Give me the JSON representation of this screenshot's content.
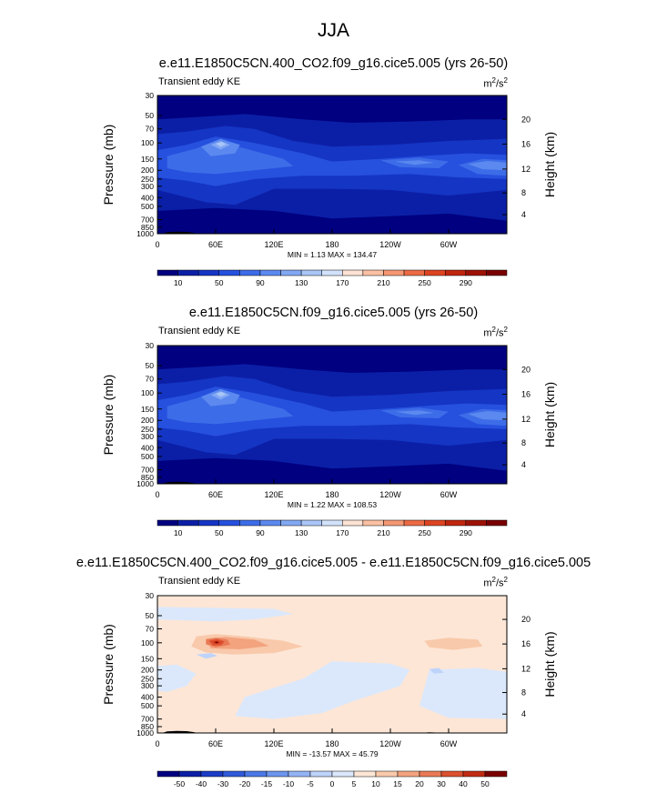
{
  "page_title": "JJA",
  "chart_data": [
    {
      "type": "heatmap",
      "title": "e.e11.E1850C5CN.400_CO2.f09_g16.cice5.005 (yrs 26-50)",
      "field_label": "Transient eddy KE",
      "units": "m",
      "units_exp": "2",
      "units_mid": "/s",
      "units_exp2": "2",
      "ylabel": "Pressure (mb)",
      "ylabel_right": "Height (km)",
      "xticks": [
        "0",
        "60E",
        "120E",
        "180",
        "120W",
        "60W"
      ],
      "yticks": [
        "30",
        "50",
        "70",
        "100",
        "150",
        "200",
        "250",
        "300",
        "400",
        "500",
        "700",
        "850",
        "1000"
      ],
      "yticks_right": [
        "20",
        "16",
        "12",
        "8",
        "4"
      ],
      "stats": "MIN =   1.13  MAX = 134.47",
      "min": 1.13,
      "max": 134.47,
      "colorbar_labels": [
        "10",
        "50",
        "90",
        "130",
        "170",
        "210",
        "250",
        "290"
      ]
    },
    {
      "type": "heatmap",
      "title": "e.e11.E1850C5CN.f09_g16.cice5.005 (yrs 26-50)",
      "field_label": "Transient eddy KE",
      "units": "m",
      "units_exp": "2",
      "units_mid": "/s",
      "units_exp2": "2",
      "ylabel": "Pressure (mb)",
      "ylabel_right": "Height (km)",
      "xticks": [
        "0",
        "60E",
        "120E",
        "180",
        "120W",
        "60W"
      ],
      "yticks": [
        "30",
        "50",
        "70",
        "100",
        "150",
        "200",
        "250",
        "300",
        "400",
        "500",
        "700",
        "850",
        "1000"
      ],
      "yticks_right": [
        "20",
        "16",
        "12",
        "8",
        "4"
      ],
      "stats": "MIN =   1.22  MAX = 108.53",
      "min": 1.22,
      "max": 108.53,
      "colorbar_labels": [
        "10",
        "50",
        "90",
        "130",
        "170",
        "210",
        "250",
        "290"
      ]
    },
    {
      "type": "heatmap",
      "title": "e.e11.E1850C5CN.400_CO2.f09_g16.cice5.005 - e.e11.E1850C5CN.f09_g16.cice5.005",
      "field_label": "Transient eddy KE",
      "units": "m",
      "units_exp": "2",
      "units_mid": "/s",
      "units_exp2": "2",
      "ylabel": "Pressure (mb)",
      "ylabel_right": "Height (km)",
      "xticks": [
        "0",
        "60E",
        "120E",
        "180",
        "120W",
        "60W"
      ],
      "yticks": [
        "30",
        "50",
        "70",
        "100",
        "150",
        "200",
        "250",
        "300",
        "400",
        "500",
        "700",
        "850",
        "1000"
      ],
      "yticks_right": [
        "20",
        "16",
        "12",
        "8",
        "4"
      ],
      "stats": "MIN = -13.57  MAX =  45.79",
      "min": -13.57,
      "max": 45.79,
      "colorbar_labels": [
        "-50",
        "-40",
        "-30",
        "-20",
        "-15",
        "-10",
        "-5",
        "0",
        "5",
        "10",
        "15",
        "20",
        "30",
        "40",
        "50"
      ]
    }
  ],
  "colors": {
    "abs_scale": [
      "#000080",
      "#0b1fa6",
      "#1535c4",
      "#2650de",
      "#3d6ce8",
      "#5b89ef",
      "#82a8f3",
      "#a9c6f7",
      "#d2e2fb",
      "#fde3d4",
      "#fbc0a3",
      "#f59773",
      "#ec6a45",
      "#de4422",
      "#c0260e",
      "#9e1206",
      "#7a0000"
    ],
    "diff_scale": [
      "#000080",
      "#0b1fa6",
      "#1a3cc6",
      "#2f5ad9",
      "#4a78e6",
      "#6c95ee",
      "#93b4f4",
      "#bed3f9",
      "#dbe8fc",
      "#fde6d6",
      "#f9c9ab",
      "#f3a37e",
      "#e97a55",
      "#dc4f2f",
      "#c22a12",
      "#7a0000"
    ],
    "terrain": "#000000"
  }
}
